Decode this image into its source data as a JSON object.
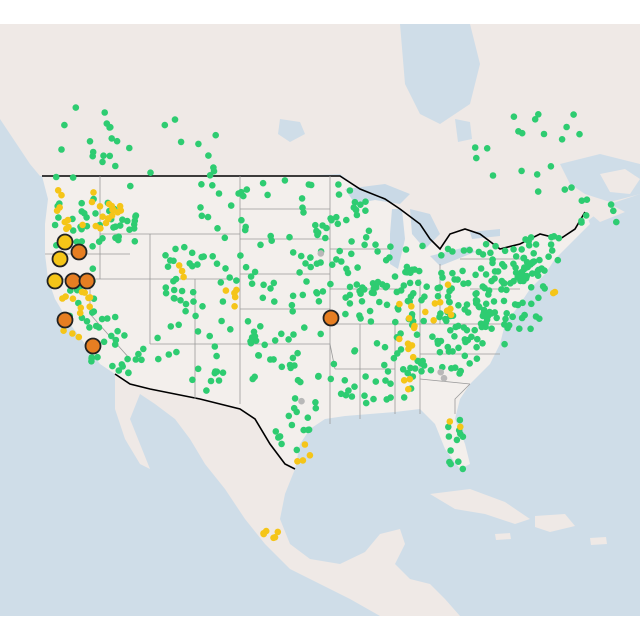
{
  "map": {
    "kind": "air-quality-sensor-map",
    "region": "North America",
    "basemap_colors": {
      "water": "#cfdde8",
      "land": "#efe9e6",
      "land_alt": "#f3efec",
      "state_line": "#9a9a9a",
      "country_line": "#000000",
      "lake": "#c9d9e6"
    },
    "marker_categories": [
      {
        "id": "good",
        "color": "#2ecc71"
      },
      {
        "id": "moderate",
        "color": "#f5c518"
      },
      {
        "id": "unhealthy-sensitive",
        "color": "#f39c12"
      },
      {
        "id": "unhealthy",
        "color": "#e67e22"
      },
      {
        "id": "no-data",
        "color": "#b8b8b8"
      }
    ],
    "highlight_marker_stroke": "#222222"
  }
}
